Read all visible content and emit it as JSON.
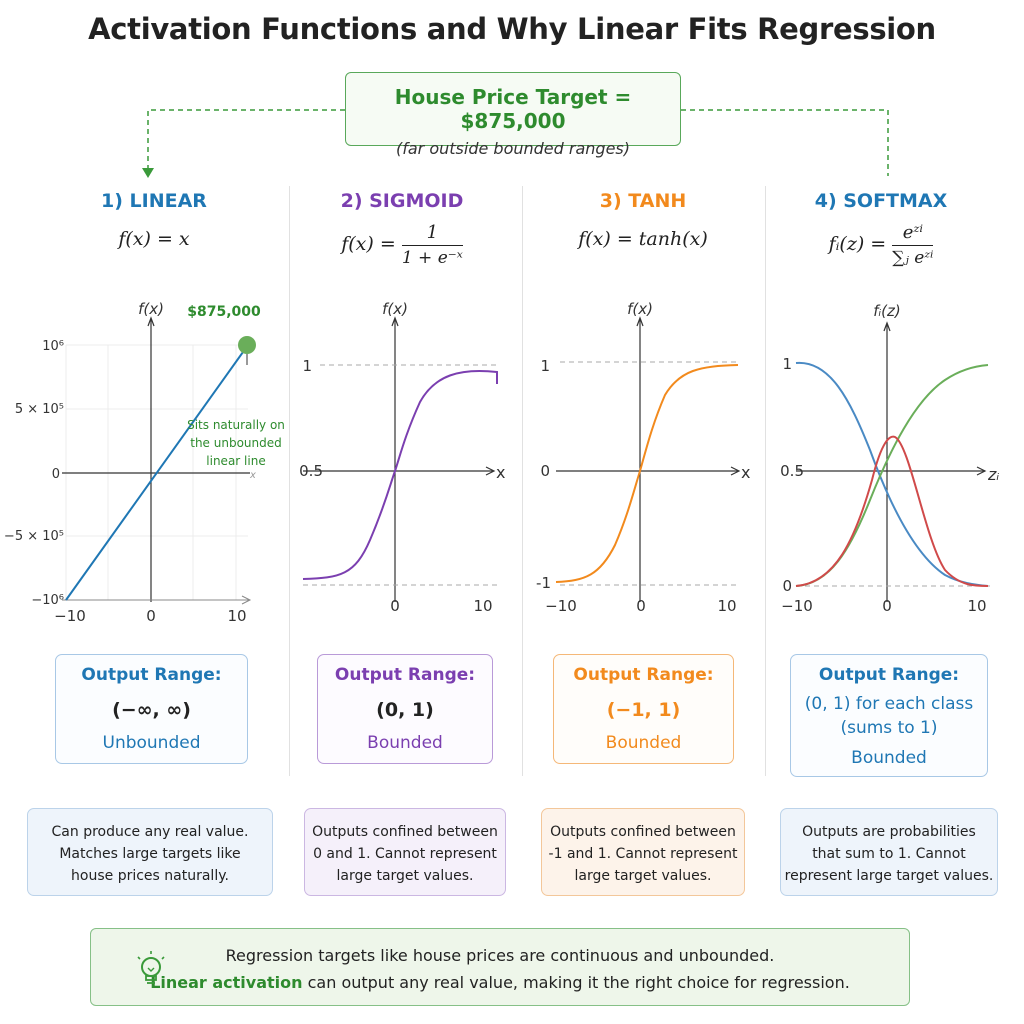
{
  "title": "Activation Functions and Why Linear Fits Regression",
  "target": {
    "main": "House Price Target = $875,000",
    "sub": "(far outside bounded ranges)"
  },
  "columns": [
    {
      "key": "linear",
      "heading": "1) LINEAR",
      "color": "#1f77b4",
      "formula": "f(x) = x",
      "plot": {
        "y_label": "f(x)",
        "x_label": "x",
        "y_ticks": [
          "10⁶",
          "5 × 10⁵",
          "0",
          "−5 × 10⁵",
          "−10⁶"
        ],
        "x_ticks": [
          "−10",
          "0",
          "10"
        ],
        "highlight_label": "$875,000",
        "annotation": [
          "Sits naturally on",
          "the unbounded",
          "linear line"
        ]
      },
      "range_label": "Output Range:",
      "range_value": "(−∞, ∞)",
      "range_kind": "Unbounded",
      "description": [
        "Can produce any real value.",
        "Matches large targets like",
        "house prices naturally."
      ]
    },
    {
      "key": "sigmoid",
      "heading": "2) SIGMOID",
      "color": "#7b3fb0",
      "formula_lhs": "f(x) =",
      "formula_num": "1",
      "formula_den": "1 + e⁻ˣ",
      "plot": {
        "y_label": "f(x)",
        "x_label": "x",
        "y_ticks": [
          "1",
          "0.5"
        ],
        "x_ticks": [
          "0",
          "10"
        ]
      },
      "range_label": "Output Range:",
      "range_value": "(0, 1)",
      "range_kind": "Bounded",
      "description": [
        "Outputs confined between",
        "0 and 1. Cannot represent",
        "large target values."
      ]
    },
    {
      "key": "tanh",
      "heading": "3) TANH",
      "color": "#f28a1d",
      "formula": "f(x) = tanh(x)",
      "plot": {
        "y_label": "f(x)",
        "x_label": "x",
        "y_ticks": [
          "1",
          "0",
          "-1"
        ],
        "x_ticks": [
          "−10",
          "0",
          "10"
        ]
      },
      "range_label": "Output Range:",
      "range_value": "(−1, 1)",
      "range_kind": "Bounded",
      "description": [
        "Outputs confined between",
        "-1 and 1. Cannot represent",
        "large target values."
      ]
    },
    {
      "key": "softmax",
      "heading": "4) SOFTMAX",
      "color": "#1f77b4",
      "formula_lhs": "fᵢ(z) =",
      "formula_num": "eᶻⁱ",
      "formula_den": "∑ⱼ eᶻⁱ",
      "plot": {
        "y_label": "fᵢ(z)",
        "x_label": "zᵢ",
        "y_ticks": [
          "1",
          "0.5",
          "0"
        ],
        "x_ticks": [
          "−10",
          "0",
          "10"
        ]
      },
      "range_label": "Output Range:",
      "range_value_lines": [
        "(0, 1) for each class",
        "(sums to 1)"
      ],
      "range_kind": "Bounded",
      "description": [
        "Outputs are probabilities",
        "that sum to 1. Cannot",
        "represent large target values."
      ]
    }
  ],
  "summary": {
    "line1": "Regression targets like house prices are continuous and unbounded.",
    "line2_highlight": "Linear activation",
    "line2_rest": " can output any real value, making it the right choice for regression."
  },
  "colors": {
    "linear": "#1f77b4",
    "sigmoid": "#7b3fb0",
    "tanh": "#f28a1d",
    "softmax": "#1f77b4",
    "green": "#2e8b2e",
    "softmax_red": "#d04a4a",
    "softmax_green": "#6aae5a",
    "softmax_blue": "#4a8ac4"
  }
}
